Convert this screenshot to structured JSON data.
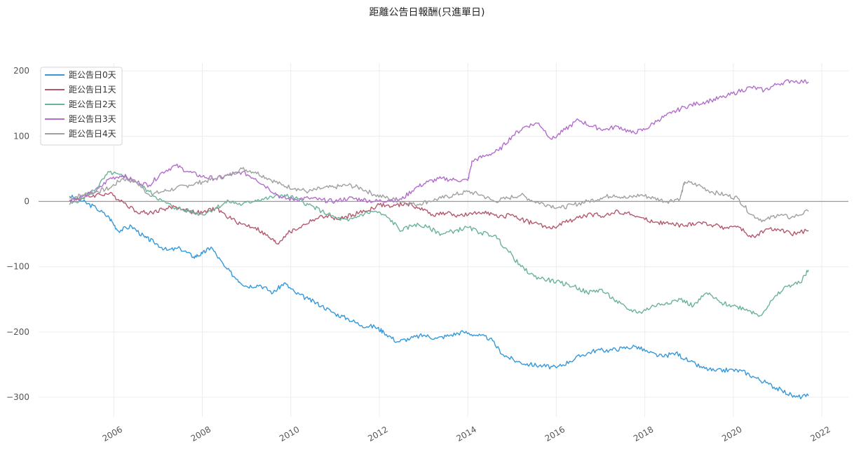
{
  "chart_data": {
    "type": "line",
    "title": "距離公告日報酬(只進單日)",
    "xlabel": "",
    "ylabel": "",
    "xlim": [
      2004.3,
      2022.6
    ],
    "ylim": [
      -330,
      212
    ],
    "grid": true,
    "legend_position": "top-left",
    "x_ticks": [
      2006,
      2008,
      2010,
      2012,
      2014,
      2016,
      2018,
      2020,
      2022
    ],
    "x_tick_labels": [
      "2006",
      "2008",
      "2010",
      "2012",
      "2014",
      "2016",
      "2018",
      "2020",
      "2022"
    ],
    "y_ticks": [
      200,
      100,
      0,
      -100,
      -200,
      -300
    ],
    "y_tick_labels": [
      "200",
      "100",
      "0",
      "−100",
      "−200",
      "−300"
    ],
    "reference_line": 0,
    "series": [
      {
        "name": "距公告日0天",
        "color": "#3498db",
        "x": [
          2005.0,
          2005.3,
          2005.6,
          2005.9,
          2006.1,
          2006.4,
          2006.7,
          2006.9,
          2007.2,
          2007.5,
          2007.8,
          2008.0,
          2008.2,
          2008.5,
          2008.8,
          2009.0,
          2009.3,
          2009.6,
          2009.85,
          2010.1,
          2010.4,
          2010.7,
          2011.0,
          2011.3,
          2011.6,
          2011.9,
          2012.1,
          2012.4,
          2012.7,
          2013.0,
          2013.3,
          2013.6,
          2013.9,
          2014.2,
          2014.5,
          2014.8,
          2015.1,
          2015.4,
          2015.7,
          2016.0,
          2016.3,
          2016.6,
          2016.9,
          2017.2,
          2017.5,
          2017.8,
          2018.1,
          2018.4,
          2018.7,
          2019.0,
          2019.3,
          2019.6,
          2019.9,
          2020.2,
          2020.5,
          2020.8,
          2021.1,
          2021.4,
          2021.7
        ],
        "values": [
          8,
          0,
          -10,
          -25,
          -45,
          -38,
          -55,
          -62,
          -75,
          -72,
          -85,
          -80,
          -70,
          -100,
          -120,
          -130,
          -128,
          -140,
          -125,
          -140,
          -150,
          -160,
          -172,
          -180,
          -190,
          -192,
          -200,
          -215,
          -210,
          -205,
          -210,
          -205,
          -200,
          -205,
          -210,
          -235,
          -245,
          -250,
          -252,
          -255,
          -245,
          -235,
          -228,
          -228,
          -225,
          -222,
          -232,
          -238,
          -232,
          -245,
          -255,
          -260,
          -258,
          -260,
          -270,
          -280,
          -290,
          -300,
          -298
        ]
      },
      {
        "name": "距公告日1天",
        "color": "#b5586e",
        "x": [
          2005.0,
          2005.3,
          2005.6,
          2005.9,
          2006.2,
          2006.5,
          2006.8,
          2007.1,
          2007.4,
          2007.7,
          2008.0,
          2008.3,
          2008.6,
          2008.9,
          2009.2,
          2009.5,
          2009.7,
          2009.9,
          2010.2,
          2010.5,
          2010.8,
          2011.1,
          2011.4,
          2011.7,
          2012.0,
          2012.3,
          2012.6,
          2012.9,
          2013.2,
          2013.5,
          2013.8,
          2014.1,
          2014.4,
          2014.7,
          2015.0,
          2015.3,
          2015.6,
          2015.9,
          2016.2,
          2016.5,
          2016.8,
          2017.1,
          2017.4,
          2017.7,
          2018.0,
          2018.3,
          2018.6,
          2018.9,
          2019.2,
          2019.5,
          2019.8,
          2020.1,
          2020.4,
          2020.7,
          2021.0,
          2021.3,
          2021.7
        ],
        "values": [
          2,
          5,
          10,
          12,
          0,
          -15,
          -18,
          -12,
          -8,
          -15,
          -18,
          -10,
          -25,
          -35,
          -40,
          -55,
          -65,
          -50,
          -40,
          -28,
          -22,
          -28,
          -20,
          -15,
          -5,
          -8,
          -3,
          -10,
          -20,
          -18,
          -22,
          -20,
          -15,
          -25,
          -20,
          -30,
          -35,
          -42,
          -32,
          -25,
          -20,
          -22,
          -15,
          -20,
          -28,
          -32,
          -35,
          -38,
          -32,
          -36,
          -40,
          -38,
          -55,
          -45,
          -42,
          -50,
          -45
        ]
      },
      {
        "name": "距公告日2天",
        "color": "#6ab398",
        "x": [
          2005.0,
          2005.3,
          2005.6,
          2005.9,
          2006.2,
          2006.5,
          2006.8,
          2007.1,
          2007.4,
          2007.7,
          2008.0,
          2008.3,
          2008.6,
          2008.9,
          2009.2,
          2009.5,
          2009.8,
          2010.1,
          2010.4,
          2010.7,
          2011.0,
          2011.3,
          2011.6,
          2011.9,
          2012.2,
          2012.5,
          2012.8,
          2013.1,
          2013.4,
          2013.7,
          2014.0,
          2014.3,
          2014.6,
          2014.9,
          2015.2,
          2015.5,
          2015.8,
          2016.1,
          2016.4,
          2016.7,
          2017.0,
          2017.3,
          2017.6,
          2017.9,
          2018.2,
          2018.5,
          2018.8,
          2019.1,
          2019.4,
          2019.7,
          2020.0,
          2020.3,
          2020.6,
          2020.9,
          2021.2,
          2021.5,
          2021.7
        ],
        "values": [
          -5,
          5,
          20,
          45,
          38,
          30,
          15,
          0,
          -10,
          -15,
          -20,
          -10,
          0,
          -5,
          2,
          5,
          10,
          5,
          -5,
          -15,
          -25,
          -30,
          -20,
          -15,
          -25,
          -45,
          -35,
          -40,
          -50,
          -45,
          -40,
          -48,
          -52,
          -75,
          -100,
          -115,
          -120,
          -125,
          -130,
          -140,
          -135,
          -150,
          -165,
          -170,
          -160,
          -155,
          -150,
          -160,
          -140,
          -155,
          -160,
          -165,
          -175,
          -150,
          -130,
          -125,
          -105
        ]
      },
      {
        "name": "距公告日3天",
        "color": "#b36dcc",
        "x": [
          2005.0,
          2005.3,
          2005.6,
          2005.9,
          2006.2,
          2006.5,
          2006.8,
          2007.1,
          2007.4,
          2007.7,
          2008.0,
          2008.3,
          2008.6,
          2008.9,
          2009.2,
          2009.5,
          2009.8,
          2010.1,
          2010.4,
          2010.7,
          2011.0,
          2011.3,
          2011.6,
          2011.9,
          2012.2,
          2012.5,
          2012.8,
          2013.1,
          2013.4,
          2013.7,
          2014.0,
          2014.1,
          2014.4,
          2014.7,
          2015.0,
          2015.3,
          2015.6,
          2015.9,
          2016.2,
          2016.5,
          2016.8,
          2017.1,
          2017.4,
          2017.7,
          2018.0,
          2018.3,
          2018.6,
          2018.9,
          2019.2,
          2019.5,
          2019.8,
          2020.1,
          2020.4,
          2020.7,
          2021.0,
          2021.3,
          2021.7
        ],
        "values": [
          0,
          8,
          15,
          35,
          40,
          30,
          25,
          45,
          55,
          45,
          38,
          35,
          40,
          45,
          35,
          20,
          5,
          3,
          5,
          2,
          0,
          5,
          3,
          0,
          2,
          3,
          20,
          30,
          35,
          33,
          32,
          62,
          70,
          78,
          100,
          115,
          120,
          95,
          110,
          125,
          115,
          110,
          115,
          105,
          110,
          125,
          135,
          145,
          150,
          155,
          160,
          168,
          175,
          170,
          180,
          185,
          183
        ]
      },
      {
        "name": "距公告日4天",
        "color": "#a0a0a0",
        "x": [
          2005.0,
          2005.3,
          2005.6,
          2005.9,
          2006.2,
          2006.5,
          2006.8,
          2007.1,
          2007.4,
          2007.7,
          2008.0,
          2008.3,
          2008.6,
          2008.9,
          2009.2,
          2009.5,
          2009.8,
          2010.1,
          2010.4,
          2010.7,
          2011.0,
          2011.3,
          2011.6,
          2011.9,
          2012.2,
          2012.5,
          2012.8,
          2013.1,
          2013.4,
          2013.7,
          2014.0,
          2014.3,
          2014.6,
          2014.9,
          2015.2,
          2015.5,
          2015.8,
          2016.1,
          2016.4,
          2016.7,
          2017.0,
          2017.3,
          2017.6,
          2017.9,
          2018.2,
          2018.5,
          2018.8,
          2018.9,
          2019.2,
          2019.5,
          2019.8,
          2020.1,
          2020.4,
          2020.7,
          2021.0,
          2021.3,
          2021.7
        ],
        "values": [
          5,
          10,
          15,
          20,
          35,
          30,
          10,
          15,
          20,
          25,
          30,
          35,
          40,
          50,
          45,
          35,
          25,
          20,
          15,
          20,
          22,
          25,
          20,
          10,
          5,
          0,
          -5,
          0,
          5,
          10,
          15,
          10,
          0,
          5,
          10,
          0,
          -5,
          -10,
          -5,
          0,
          5,
          10,
          5,
          10,
          5,
          0,
          5,
          30,
          25,
          15,
          10,
          5,
          -20,
          -30,
          -20,
          -25,
          -15
        ]
      }
    ]
  }
}
